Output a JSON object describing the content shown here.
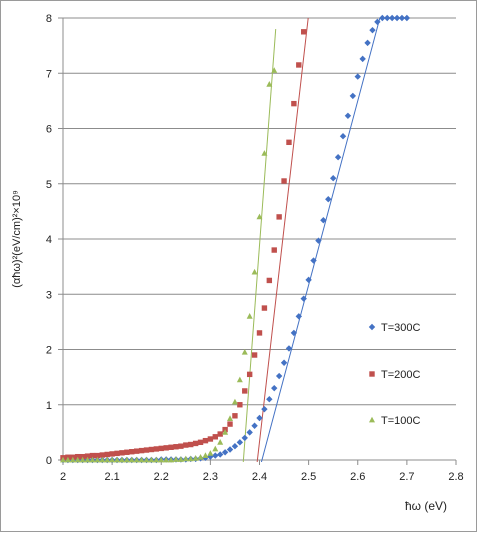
{
  "chart_data": {
    "type": "scatter",
    "xlabel": "ħω (eV)",
    "ylabel": "(αħω)²(eV/cm)²×10⁹",
    "xlim": [
      2,
      2.8
    ],
    "ylim": [
      0,
      8
    ],
    "xticks": [
      "2",
      "2.1",
      "2.2",
      "2.3",
      "2.4",
      "2.5",
      "2.6",
      "2.7",
      "2.8"
    ],
    "yticks": [
      "0",
      "1",
      "2",
      "3",
      "4",
      "5",
      "6",
      "7",
      "8"
    ],
    "grid": "horizontal",
    "legend_position": "right",
    "series": [
      {
        "name": "T=300C",
        "marker": "diamond",
        "color": "#4472C4",
        "x": [
          2.0,
          2.01,
          2.02,
          2.03,
          2.04,
          2.05,
          2.06,
          2.07,
          2.08,
          2.09,
          2.1,
          2.11,
          2.12,
          2.13,
          2.14,
          2.15,
          2.16,
          2.17,
          2.18,
          2.19,
          2.2,
          2.21,
          2.22,
          2.23,
          2.24,
          2.25,
          2.26,
          2.27,
          2.28,
          2.29,
          2.3,
          2.31,
          2.32,
          2.33,
          2.34,
          2.35,
          2.36,
          2.37,
          2.38,
          2.39,
          2.4,
          2.41,
          2.42,
          2.43,
          2.44,
          2.45,
          2.46,
          2.47,
          2.48,
          2.49,
          2.5,
          2.51,
          2.52,
          2.53,
          2.54,
          2.55,
          2.56,
          2.57,
          2.58,
          2.59,
          2.6,
          2.61,
          2.62,
          2.63,
          2.64,
          2.65,
          2.66,
          2.67,
          2.68,
          2.69,
          2.7
        ],
        "y": [
          0.0,
          0.0,
          0.0,
          0.0,
          0.0,
          0.0,
          0.0,
          0.0,
          0.0,
          0.0,
          0.0,
          0.0,
          0.0,
          0.0,
          0.0,
          0.0,
          0.0,
          0.0,
          0.0,
          0.0,
          0.01,
          0.01,
          0.01,
          0.01,
          0.01,
          0.01,
          0.02,
          0.02,
          0.03,
          0.04,
          0.06,
          0.08,
          0.1,
          0.14,
          0.19,
          0.25,
          0.32,
          0.4,
          0.5,
          0.62,
          0.76,
          0.92,
          1.1,
          1.3,
          1.52,
          1.76,
          2.02,
          2.3,
          2.6,
          2.92,
          3.26,
          3.61,
          3.97,
          4.34,
          4.72,
          5.1,
          5.48,
          5.86,
          6.23,
          6.59,
          6.94,
          7.26,
          7.55,
          7.78,
          7.93,
          8.0,
          8.0,
          8.0,
          8.0,
          8.0,
          8.0
        ]
      },
      {
        "name": "T=200C",
        "marker": "square",
        "color": "#C0504D",
        "x": [
          2.0,
          2.01,
          2.02,
          2.03,
          2.04,
          2.05,
          2.06,
          2.07,
          2.08,
          2.09,
          2.1,
          2.11,
          2.12,
          2.13,
          2.14,
          2.15,
          2.16,
          2.17,
          2.18,
          2.19,
          2.2,
          2.21,
          2.22,
          2.23,
          2.24,
          2.25,
          2.26,
          2.27,
          2.28,
          2.29,
          2.3,
          2.31,
          2.32,
          2.33,
          2.34,
          2.35,
          2.36,
          2.37,
          2.38,
          2.39,
          2.4,
          2.41,
          2.42,
          2.43,
          2.44,
          2.45,
          2.46,
          2.47,
          2.48,
          2.49
        ],
        "y": [
          0.04,
          0.05,
          0.05,
          0.06,
          0.06,
          0.07,
          0.08,
          0.08,
          0.09,
          0.1,
          0.11,
          0.12,
          0.13,
          0.14,
          0.15,
          0.16,
          0.17,
          0.18,
          0.19,
          0.2,
          0.21,
          0.22,
          0.23,
          0.24,
          0.25,
          0.27,
          0.28,
          0.3,
          0.32,
          0.35,
          0.38,
          0.42,
          0.47,
          0.55,
          0.65,
          0.8,
          1.0,
          1.25,
          1.55,
          1.9,
          2.3,
          2.75,
          3.25,
          3.8,
          4.4,
          5.05,
          5.75,
          6.45,
          7.15,
          7.75
        ]
      },
      {
        "name": "T=100C",
        "marker": "triangle",
        "color": "#9BBB59",
        "x": [
          2.0,
          2.01,
          2.02,
          2.03,
          2.04,
          2.05,
          2.06,
          2.07,
          2.08,
          2.09,
          2.1,
          2.11,
          2.12,
          2.13,
          2.14,
          2.15,
          2.16,
          2.17,
          2.18,
          2.19,
          2.2,
          2.21,
          2.22,
          2.23,
          2.24,
          2.25,
          2.26,
          2.27,
          2.28,
          2.29,
          2.3,
          2.31,
          2.32,
          2.33,
          2.34,
          2.35,
          2.36,
          2.37,
          2.38,
          2.39,
          2.4,
          2.41,
          2.42,
          2.43
        ],
        "y": [
          0.0,
          0.0,
          0.0,
          0.0,
          0.0,
          0.0,
          0.0,
          0.0,
          0.0,
          0.0,
          0.0,
          0.0,
          0.0,
          0.0,
          0.0,
          0.0,
          0.0,
          0.0,
          0.0,
          0.0,
          0.0,
          0.0,
          0.0,
          0.01,
          0.01,
          0.02,
          0.02,
          0.03,
          0.05,
          0.08,
          0.12,
          0.2,
          0.32,
          0.5,
          0.75,
          1.05,
          1.45,
          1.95,
          2.6,
          3.4,
          4.4,
          5.55,
          6.8,
          7.05
        ]
      }
    ],
    "fit_lines": [
      {
        "series": "T=300C",
        "color": "#4472C4",
        "x": [
          2.375,
          2.645
        ],
        "y": [
          -1.0,
          8.0
        ]
      },
      {
        "series": "T=200C",
        "color": "#C0504D",
        "x": [
          2.388,
          2.503
        ],
        "y": [
          -0.6,
          8.3
        ]
      },
      {
        "series": "T=100C",
        "color": "#9BBB59",
        "x": [
          2.358,
          2.433
        ],
        "y": [
          -1.1,
          7.8
        ]
      }
    ]
  }
}
